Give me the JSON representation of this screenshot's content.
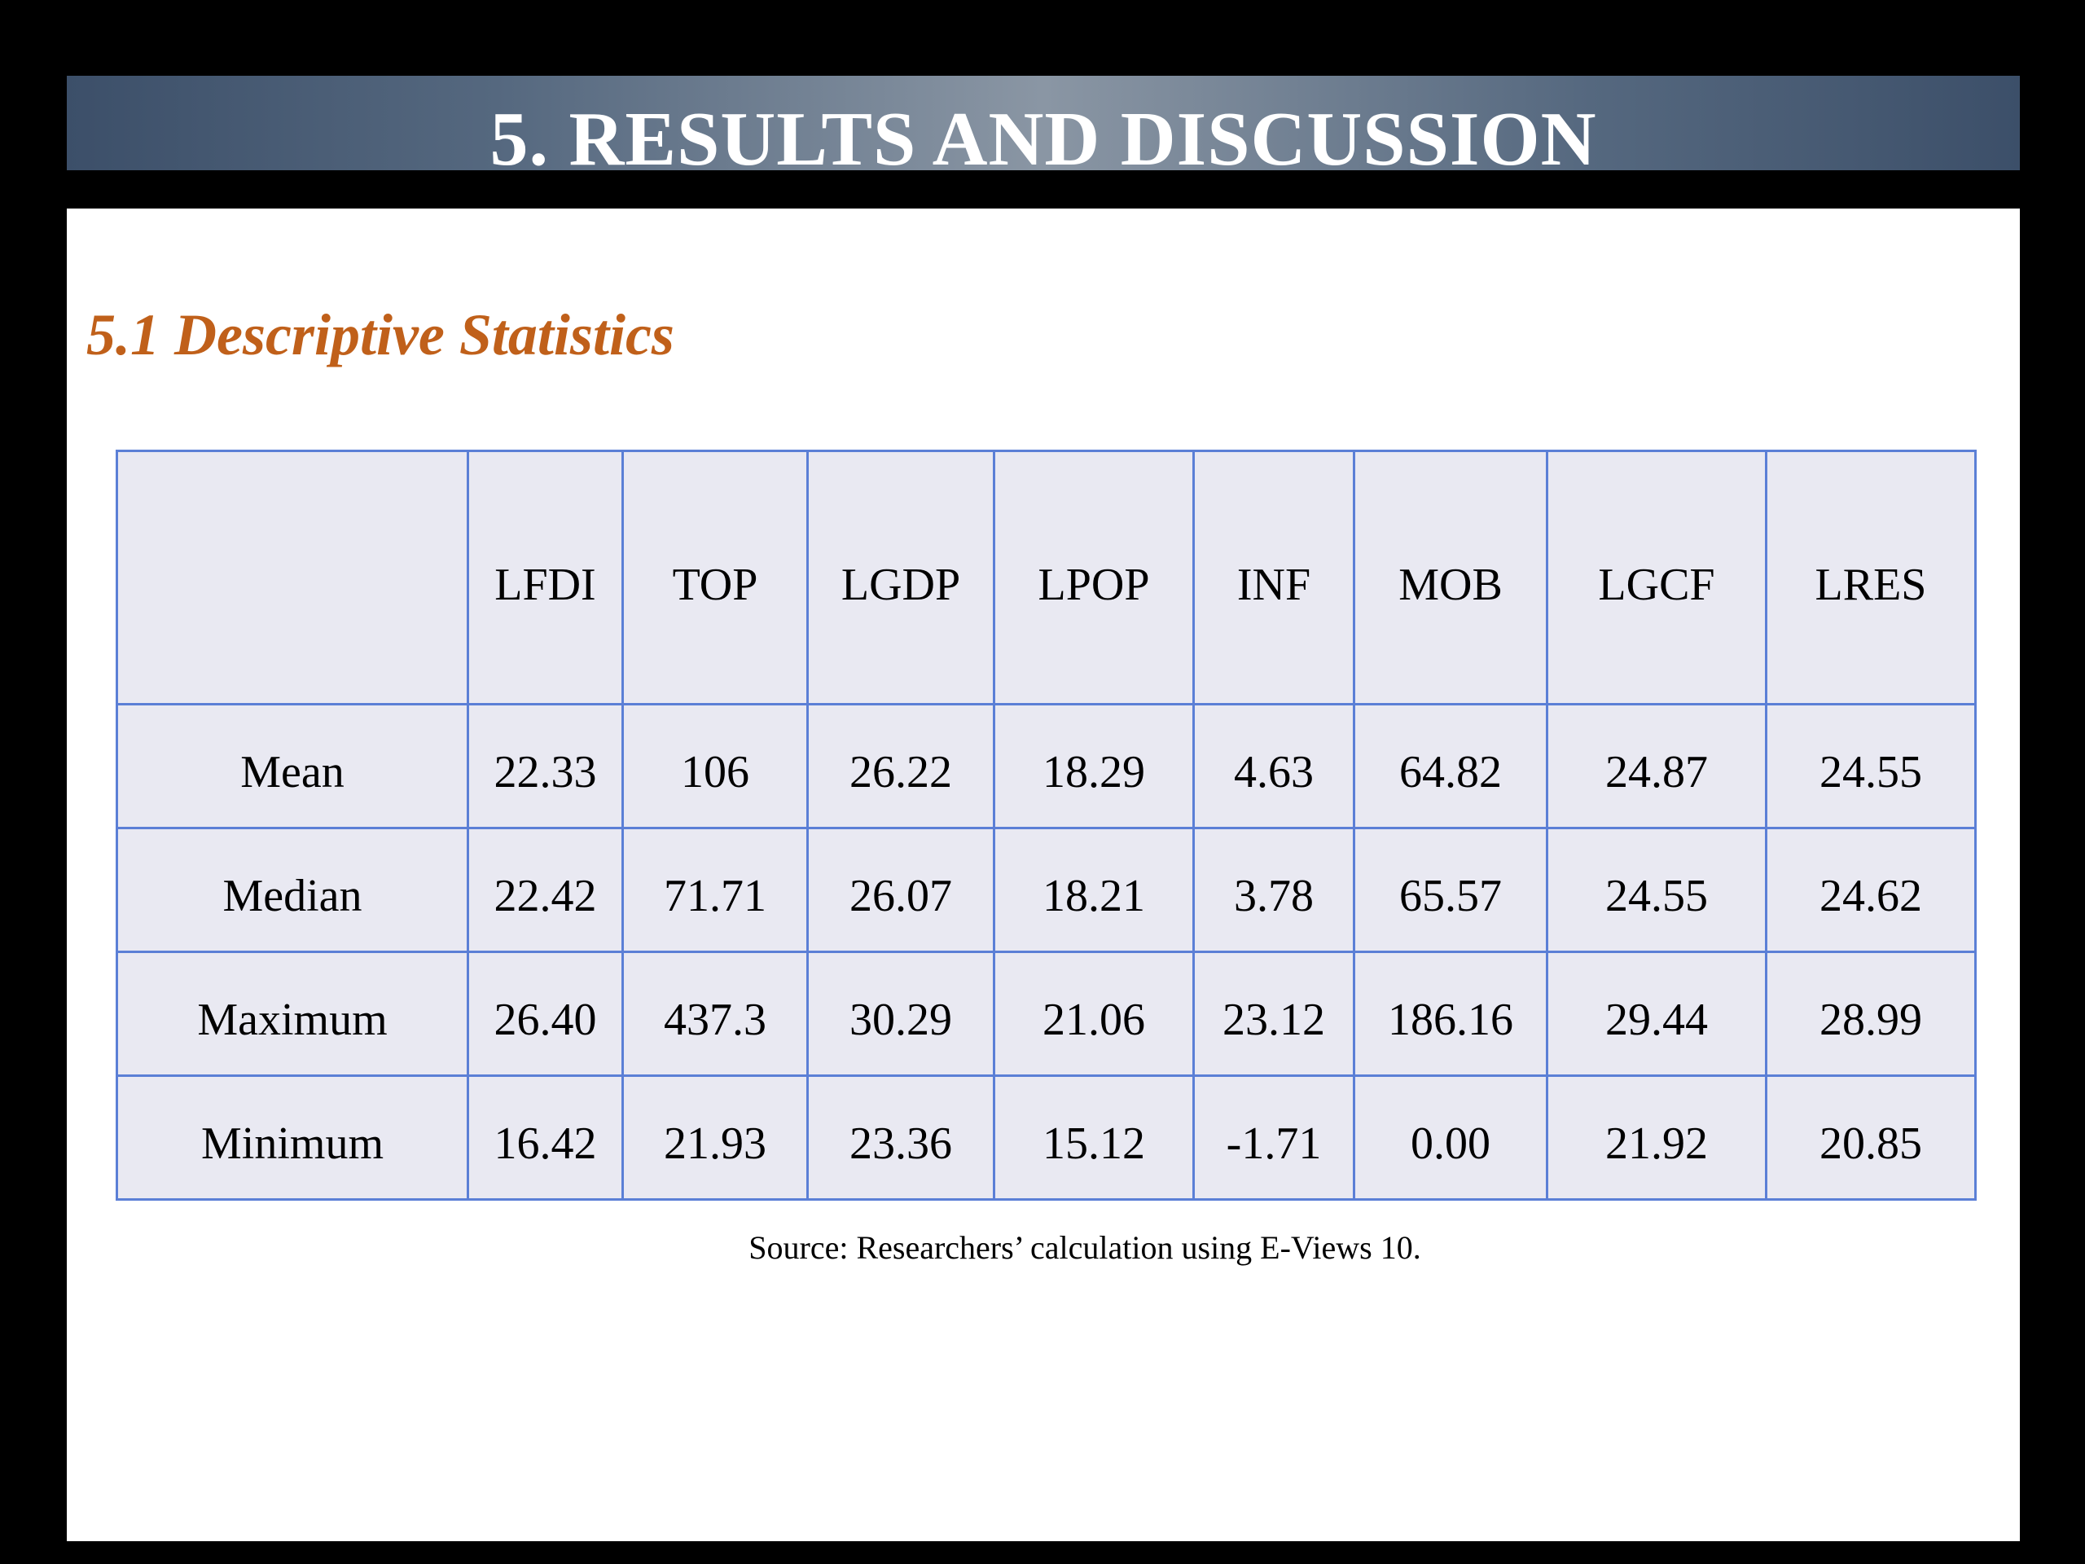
{
  "slide": {
    "title": "5. RESULTS AND DISCUSSION",
    "section_heading": "5.1 Descriptive Statistics",
    "source_note": "Source: Researchers’ calculation using E-Views 10."
  },
  "table": {
    "corner_label": "",
    "columns": [
      "LFDI",
      "TOP",
      "LGDP",
      "LPOP",
      "INF",
      "MOB",
      "LGCF",
      "LRES"
    ],
    "rows": [
      {
        "label": "Mean",
        "values": [
          "22.33",
          "106",
          "26.22",
          "18.29",
          "4.63",
          "64.82",
          "24.87",
          "24.55"
        ]
      },
      {
        "label": "Median",
        "values": [
          "22.42",
          "71.71",
          "26.07",
          "18.21",
          "3.78",
          "65.57",
          "24.55",
          "24.62"
        ]
      },
      {
        "label": "Maximum",
        "values": [
          "26.40",
          "437.3",
          "30.29",
          "21.06",
          "23.12",
          "186.16",
          "29.44",
          "28.99"
        ]
      },
      {
        "label": "Minimum",
        "values": [
          "16.42",
          "21.93",
          "23.36",
          "15.12",
          "-1.71",
          "0.00",
          "21.92",
          "20.85"
        ]
      }
    ]
  },
  "colors": {
    "page_background": "#000000",
    "title_bar": "#55687f",
    "title_text": "#ffffff",
    "heading": "#c0601a",
    "table_border": "#5b7fd6",
    "table_cell": "#e9e9f2"
  }
}
